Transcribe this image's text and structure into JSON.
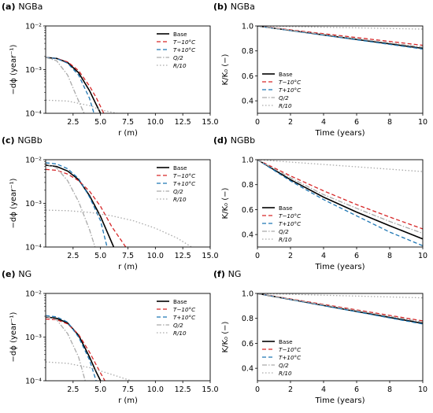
{
  "chart_data": [
    {
      "panel": "(a)",
      "name": "NGBa",
      "type": "line",
      "xlabel": "r (m)",
      "ylabel": "−dϕ (year⁻¹)",
      "xlim": [
        0,
        15
      ],
      "ylim": [
        0.0001,
        0.01
      ],
      "yscale": "log",
      "xticks": [
        2.5,
        5.0,
        7.5,
        10.0,
        12.5,
        15.0
      ],
      "yticks": [
        0.0001,
        0.001,
        0.01
      ],
      "ytick_labels": [
        "10⁻⁴",
        "10⁻³",
        "10⁻²"
      ],
      "legend": "upper right",
      "series": [
        {
          "name": "Base",
          "color": "#000000",
          "dash": "solid",
          "x": [
            0,
            1,
            2,
            3,
            4,
            4.5,
            5.0
          ],
          "y": [
            0.0019,
            0.0018,
            0.00145,
            0.00085,
            0.00033,
            0.00018,
            0.0001
          ]
        },
        {
          "name": "T−10°C",
          "color": "#d62728",
          "dash": "dashed",
          "x": [
            0,
            1,
            2,
            3,
            4,
            4.6,
            5.3
          ],
          "y": [
            0.0019,
            0.0018,
            0.0015,
            0.00095,
            0.00042,
            0.00023,
            0.0001
          ]
        },
        {
          "name": "T+10°C",
          "color": "#1f77b4",
          "dash": "dashed",
          "x": [
            0,
            1,
            2,
            3,
            4,
            4.4
          ],
          "y": [
            0.0019,
            0.0018,
            0.0014,
            0.00075,
            0.00022,
            0.0001
          ]
        },
        {
          "name": "Q/2",
          "color": "#aaaaaa",
          "dash": "dashdot",
          "x": [
            0,
            1,
            2,
            2.8,
            3.5
          ],
          "y": [
            0.0019,
            0.0016,
            0.00075,
            0.00025,
            0.0001
          ]
        },
        {
          "name": "R/10",
          "color": "#aaaaaa",
          "dash": "dotted",
          "x": [
            0,
            2,
            4,
            5,
            6.5
          ],
          "y": [
            0.0002,
            0.00019,
            0.00015,
            0.00012,
            0.0001
          ]
        }
      ]
    },
    {
      "panel": "(b)",
      "name": "NGBa",
      "type": "line",
      "xlabel": "Time (years)",
      "ylabel": "K/K₀ (−)",
      "xlim": [
        0,
        10
      ],
      "ylim": [
        0.3,
        1.0
      ],
      "yscale": "linear",
      "xticks": [
        0,
        2,
        4,
        6,
        8,
        10
      ],
      "yticks": [
        0.4,
        0.6,
        0.8,
        1.0
      ],
      "legend": "lower left",
      "series": [
        {
          "name": "Base",
          "color": "#000000",
          "dash": "solid",
          "x": [
            0,
            10
          ],
          "y": [
            1.0,
            0.82
          ]
        },
        {
          "name": "T−10°C",
          "color": "#d62728",
          "dash": "dashed",
          "x": [
            0,
            10
          ],
          "y": [
            1.0,
            0.845
          ]
        },
        {
          "name": "T+10°C",
          "color": "#1f77b4",
          "dash": "dashed",
          "x": [
            0,
            10
          ],
          "y": [
            1.0,
            0.815
          ]
        },
        {
          "name": "Q/2",
          "color": "#aaaaaa",
          "dash": "dashdot",
          "x": [
            0,
            10
          ],
          "y": [
            1.0,
            0.83
          ]
        },
        {
          "name": "R/10",
          "color": "#aaaaaa",
          "dash": "dotted",
          "x": [
            0,
            10
          ],
          "y": [
            1.0,
            0.975
          ]
        }
      ]
    },
    {
      "panel": "(c)",
      "name": "NGBb",
      "type": "line",
      "xlabel": "r (m)",
      "ylabel": "−dϕ (year⁻¹)",
      "xlim": [
        0,
        15
      ],
      "ylim": [
        0.0001,
        0.01
      ],
      "yscale": "log",
      "xticks": [
        2.5,
        5.0,
        7.5,
        10.0,
        12.5,
        15.0
      ],
      "yticks": [
        0.0001,
        0.001,
        0.01
      ],
      "ytick_labels": [
        "10⁻⁴",
        "10⁻³",
        "10⁻²"
      ],
      "legend": "upper right",
      "series": [
        {
          "name": "Base",
          "color": "#000000",
          "dash": "solid",
          "x": [
            0,
            1,
            2,
            3,
            4,
            5,
            6.2
          ],
          "y": [
            0.0075,
            0.007,
            0.0055,
            0.0035,
            0.0015,
            0.0005,
            0.0001
          ]
        },
        {
          "name": "T−10°C",
          "color": "#d62728",
          "dash": "dashed",
          "x": [
            0,
            1,
            2,
            3,
            4,
            5,
            6,
            7.3
          ],
          "y": [
            0.006,
            0.0057,
            0.0047,
            0.0033,
            0.0019,
            0.00085,
            0.0003,
            0.0001
          ]
        },
        {
          "name": "T+10°C",
          "color": "#1f77b4",
          "dash": "dashed",
          "x": [
            0,
            1,
            2,
            3,
            4,
            5,
            5.6
          ],
          "y": [
            0.0085,
            0.008,
            0.0062,
            0.0037,
            0.0014,
            0.0004,
            0.0001
          ]
        },
        {
          "name": "Q/2",
          "color": "#aaaaaa",
          "dash": "dashdot",
          "x": [
            0,
            1,
            2,
            3,
            4,
            4.5
          ],
          "y": [
            0.008,
            0.0065,
            0.0033,
            0.0011,
            0.00025,
            0.0001
          ]
        },
        {
          "name": "R/10",
          "color": "#aaaaaa",
          "dash": "dotted",
          "x": [
            0,
            2,
            4,
            6,
            8,
            10,
            12,
            13.3
          ],
          "y": [
            0.0007,
            0.00068,
            0.00062,
            0.00052,
            0.0004,
            0.00027,
            0.00016,
            0.0001
          ]
        }
      ]
    },
    {
      "panel": "(d)",
      "name": "NGBb",
      "type": "line",
      "xlabel": "Time (years)",
      "ylabel": "K/K₀ (−)",
      "xlim": [
        0,
        10
      ],
      "ylim": [
        0.3,
        1.0
      ],
      "yscale": "linear",
      "xticks": [
        0,
        2,
        4,
        6,
        8,
        10
      ],
      "yticks": [
        0.4,
        0.6,
        0.8,
        1.0
      ],
      "legend": "lower left",
      "series": [
        {
          "name": "Base",
          "color": "#000000",
          "dash": "solid",
          "x": [
            0,
            2,
            4,
            6,
            8,
            10
          ],
          "y": [
            1.0,
            0.84,
            0.7,
            0.58,
            0.47,
            0.365
          ]
        },
        {
          "name": "T−10°C",
          "color": "#d62728",
          "dash": "dashed",
          "x": [
            0,
            2,
            4,
            6,
            8,
            10
          ],
          "y": [
            1.0,
            0.87,
            0.75,
            0.64,
            0.54,
            0.445
          ]
        },
        {
          "name": "T+10°C",
          "color": "#1f77b4",
          "dash": "dashed",
          "x": [
            0,
            2,
            4,
            6,
            8,
            10
          ],
          "y": [
            1.0,
            0.83,
            0.68,
            0.55,
            0.42,
            0.31
          ]
        },
        {
          "name": "Q/2",
          "color": "#aaaaaa",
          "dash": "dashdot",
          "x": [
            0,
            2,
            4,
            6,
            8,
            10
          ],
          "y": [
            1.0,
            0.855,
            0.72,
            0.61,
            0.505,
            0.41
          ]
        },
        {
          "name": "R/10",
          "color": "#aaaaaa",
          "dash": "dotted",
          "x": [
            0,
            10
          ],
          "y": [
            1.0,
            0.905
          ]
        }
      ]
    },
    {
      "panel": "(e)",
      "name": "NG",
      "type": "line",
      "xlabel": "r (m)",
      "ylabel": "−dϕ (year⁻¹)",
      "xlim": [
        0,
        15
      ],
      "ylim": [
        0.0001,
        0.01
      ],
      "yscale": "log",
      "xticks": [
        2.5,
        5.0,
        7.5,
        10.0,
        12.5,
        15.0
      ],
      "yticks": [
        0.0001,
        0.001,
        0.01
      ],
      "ytick_labels": [
        "10⁻⁴",
        "10⁻³",
        "10⁻²"
      ],
      "legend": "upper right",
      "series": [
        {
          "name": "Base",
          "color": "#000000",
          "dash": "solid",
          "x": [
            0,
            1,
            2,
            3,
            4,
            4.6,
            5.0
          ],
          "y": [
            0.0029,
            0.0027,
            0.0021,
            0.0011,
            0.00035,
            0.00016,
            0.0001
          ]
        },
        {
          "name": "T−10°C",
          "color": "#d62728",
          "dash": "dashed",
          "x": [
            0,
            1,
            2,
            3,
            4,
            5,
            5.4
          ],
          "y": [
            0.0026,
            0.0025,
            0.002,
            0.00115,
            0.00045,
            0.00015,
            0.0001
          ]
        },
        {
          "name": "T+10°C",
          "color": "#1f77b4",
          "dash": "dashed",
          "x": [
            0,
            1,
            2,
            3,
            4,
            4.6
          ],
          "y": [
            0.0031,
            0.0029,
            0.0022,
            0.001,
            0.0003,
            0.0001
          ]
        },
        {
          "name": "Q/2",
          "color": "#aaaaaa",
          "dash": "dashdot",
          "x": [
            0,
            1,
            2,
            3,
            3.6
          ],
          "y": [
            0.003,
            0.0025,
            0.0012,
            0.00035,
            0.0001
          ]
        },
        {
          "name": "R/10",
          "color": "#aaaaaa",
          "dash": "dotted",
          "x": [
            0,
            2,
            4,
            6,
            7.8
          ],
          "y": [
            0.00027,
            0.00025,
            0.0002,
            0.00014,
            0.0001
          ]
        }
      ]
    },
    {
      "panel": "(f)",
      "name": "NG",
      "type": "line",
      "xlabel": "Time (years)",
      "ylabel": "K/K₀ (−)",
      "xlim": [
        0,
        10
      ],
      "ylim": [
        0.3,
        1.0
      ],
      "yscale": "linear",
      "xticks": [
        0,
        2,
        4,
        6,
        8,
        10
      ],
      "yticks": [
        0.4,
        0.6,
        0.8,
        1.0
      ],
      "legend": "lower left",
      "series": [
        {
          "name": "Base",
          "color": "#000000",
          "dash": "solid",
          "x": [
            0,
            10
          ],
          "y": [
            1.0,
            0.76
          ]
        },
        {
          "name": "T−10°C",
          "color": "#d62728",
          "dash": "dashed",
          "x": [
            0,
            10
          ],
          "y": [
            1.0,
            0.78
          ]
        },
        {
          "name": "T+10°C",
          "color": "#1f77b4",
          "dash": "dashed",
          "x": [
            0,
            10
          ],
          "y": [
            1.0,
            0.755
          ]
        },
        {
          "name": "Q/2",
          "color": "#aaaaaa",
          "dash": "dashdot",
          "x": [
            0,
            10
          ],
          "y": [
            1.0,
            0.77
          ]
        },
        {
          "name": "R/10",
          "color": "#aaaaaa",
          "dash": "dotted",
          "x": [
            0,
            10
          ],
          "y": [
            1.0,
            0.965
          ]
        }
      ]
    }
  ],
  "legend_labels": [
    "Base",
    "T−10°C",
    "T+10°C",
    "Q/2",
    "R/10"
  ]
}
